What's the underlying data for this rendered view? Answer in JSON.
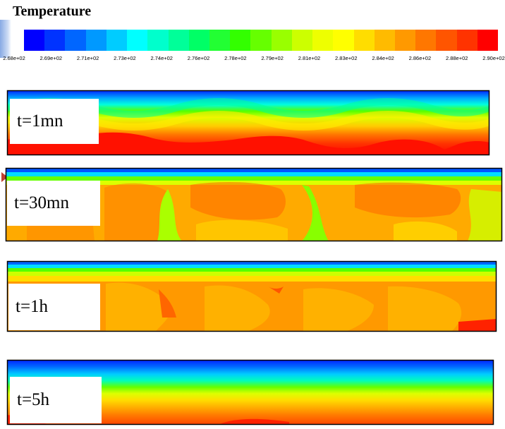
{
  "title": "Temperature",
  "colorbar": {
    "colors": [
      "#0000ff",
      "#0033ff",
      "#0066ff",
      "#0099ff",
      "#00ccff",
      "#00ffff",
      "#00ffcc",
      "#00ff99",
      "#00ff66",
      "#22ff33",
      "#33ff00",
      "#66ff00",
      "#99ff00",
      "#ccff00",
      "#eeff00",
      "#ffff00",
      "#ffdd00",
      "#ffbb00",
      "#ff9900",
      "#ff7700",
      "#ff5500",
      "#ff3300",
      "#ff0000"
    ],
    "ticks": [
      "2.68e+02",
      "2.69e+02",
      "2.71e+02",
      "2.73e+02",
      "2.74e+02",
      "2.76e+02",
      "2.78e+02",
      "2.79e+02",
      "2.81e+02",
      "2.83e+02",
      "2.84e+02",
      "2.86e+02",
      "2.88e+02",
      "2.90e+02"
    ]
  },
  "panels": [
    {
      "id": "t1mn",
      "label": "t=1mn"
    },
    {
      "id": "t30mn",
      "label": "t=30mn"
    },
    {
      "id": "t1h",
      "label": "t=1h"
    },
    {
      "id": "t5h",
      "label": "t=5h"
    }
  ]
}
